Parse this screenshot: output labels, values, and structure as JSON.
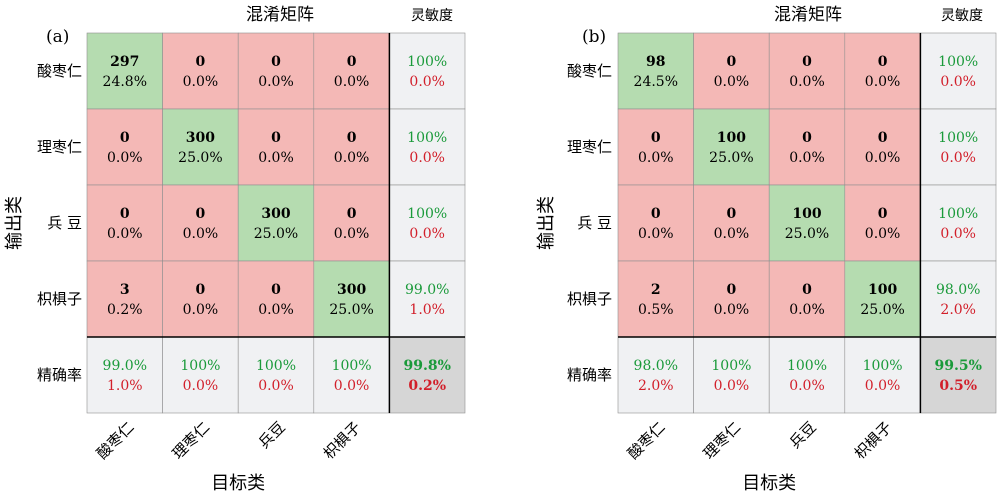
{
  "colors": {
    "correct_bg": "#b5dcb0",
    "wrong_bg": "#f4b8b6",
    "summary_bg": "#f0f1f3",
    "overall_bg": "#d6d6d6",
    "good_text": "#1a9a3a",
    "bad_text": "#d21f2a",
    "text": "#000000",
    "grid_line": "#8f8f8f"
  },
  "chart_data": [
    {
      "type": "heatmap",
      "panel_label": "(a)",
      "title": "混淆矩阵",
      "sensitivity_label": "灵敏度",
      "xlabel": "目标类",
      "ylabel": "输出类",
      "row_labels": [
        "酸枣仁",
        "理枣仁",
        "兵  豆",
        "枳椇子",
        "精确率"
      ],
      "col_labels": [
        "酸枣仁",
        "理枣仁",
        "兵豆",
        "枳椇子"
      ],
      "counts": [
        [
          297,
          0,
          0,
          0
        ],
        [
          0,
          300,
          0,
          0
        ],
        [
          0,
          0,
          300,
          0
        ],
        [
          3,
          0,
          0,
          300
        ]
      ],
      "percents": [
        [
          "24.8%",
          "0.0%",
          "0.0%",
          "0.0%"
        ],
        [
          "0.0%",
          "25.0%",
          "0.0%",
          "0.0%"
        ],
        [
          "0.0%",
          "0.0%",
          "25.0%",
          "0.0%"
        ],
        [
          "0.2%",
          "0.0%",
          "0.0%",
          "25.0%"
        ]
      ],
      "row_summary": [
        [
          "100%",
          "0.0%"
        ],
        [
          "100%",
          "0.0%"
        ],
        [
          "100%",
          "0.0%"
        ],
        [
          "99.0%",
          "1.0%"
        ]
      ],
      "col_summary": [
        [
          "99.0%",
          "1.0%"
        ],
        [
          "100%",
          "0.0%"
        ],
        [
          "100%",
          "0.0%"
        ],
        [
          "100%",
          "0.0%"
        ]
      ],
      "overall": [
        "99.8%",
        "0.2%"
      ]
    },
    {
      "type": "heatmap",
      "panel_label": "(b)",
      "title": "混淆矩阵",
      "sensitivity_label": "灵敏度",
      "xlabel": "目标类",
      "ylabel": "输出类",
      "row_labels": [
        "酸枣仁",
        "理枣仁",
        "兵  豆",
        "枳椇子",
        "精确率"
      ],
      "col_labels": [
        "酸枣仁",
        "理枣仁",
        "兵豆",
        "枳椇子"
      ],
      "counts": [
        [
          98,
          0,
          0,
          0
        ],
        [
          0,
          100,
          0,
          0
        ],
        [
          0,
          0,
          100,
          0
        ],
        [
          2,
          0,
          0,
          100
        ]
      ],
      "percents": [
        [
          "24.5%",
          "0.0%",
          "0.0%",
          "0.0%"
        ],
        [
          "0.0%",
          "25.0%",
          "0.0%",
          "0.0%"
        ],
        [
          "0.0%",
          "0.0%",
          "25.0%",
          "0.0%"
        ],
        [
          "0.5%",
          "0.0%",
          "0.0%",
          "25.0%"
        ]
      ],
      "row_summary": [
        [
          "100%",
          "0.0%"
        ],
        [
          "100%",
          "0.0%"
        ],
        [
          "100%",
          "0.0%"
        ],
        [
          "98.0%",
          "2.0%"
        ]
      ],
      "col_summary": [
        [
          "98.0%",
          "2.0%"
        ],
        [
          "100%",
          "0.0%"
        ],
        [
          "100%",
          "0.0%"
        ],
        [
          "100%",
          "0.0%"
        ]
      ],
      "overall": [
        "99.5%",
        "0.5%"
      ]
    }
  ]
}
